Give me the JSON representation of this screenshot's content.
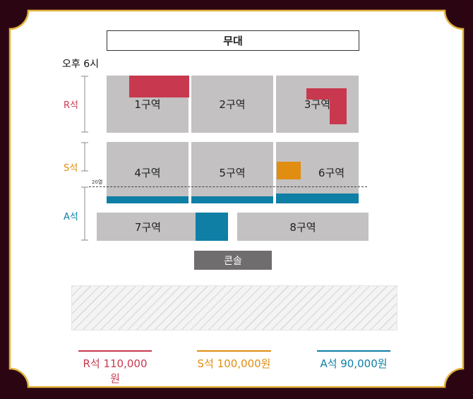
{
  "stage_label": "무대",
  "time_label": "오후 6시",
  "rows": {
    "r": {
      "label": "R석",
      "color": "#c8394f"
    },
    "s": {
      "label": "S석",
      "color": "#e08d10"
    },
    "a": {
      "label": "A석",
      "color": "#0f7fa6"
    }
  },
  "sections": [
    "1구역",
    "2구역",
    "3구역",
    "4구역",
    "5구역",
    "6구역",
    "7구역",
    "8구역"
  ],
  "row20_label": "20열",
  "console_label": "콘솔",
  "prices": [
    {
      "label": "R석 110,000원",
      "color": "#c8394f"
    },
    {
      "label": "S석 100,000원",
      "color": "#e08d10"
    },
    {
      "label": "A석 90,000원",
      "color": "#0f7fa6"
    }
  ],
  "colors": {
    "background": "#2b0612",
    "frame_border": "#e3b23c",
    "card": "#ffffff",
    "section": "#c3c1c1"
  }
}
